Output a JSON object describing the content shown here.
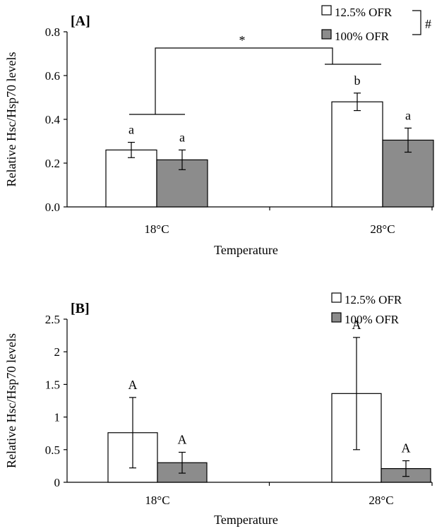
{
  "chart_data": [
    {
      "type": "bar",
      "panel_label": "[A]",
      "title": "",
      "xlabel": "Temperature",
      "ylabel": "Relative Hsc/Hsp70 levels",
      "categories": [
        "18°C",
        "28°C"
      ],
      "ylim": [
        0,
        0.8
      ],
      "yticks": [
        "0.0",
        "0.2",
        "0.4",
        "0.6",
        "0.8"
      ],
      "series": [
        {
          "name": "12.5% OFR",
          "values": [
            0.26,
            0.48
          ],
          "errors": [
            0.035,
            0.04
          ],
          "labels": [
            "a",
            "b"
          ],
          "color": "#ffffff"
        },
        {
          "name": "100% OFR",
          "values": [
            0.215,
            0.305
          ],
          "errors": [
            0.045,
            0.055
          ],
          "labels": [
            "a",
            "a"
          ],
          "color": "#8c8c8c"
        }
      ],
      "legend_position": "top-right",
      "annotations": {
        "temperature_sig": "*",
        "diet_sig": "#"
      }
    },
    {
      "type": "bar",
      "panel_label": "[B]",
      "title": "",
      "xlabel": "Temperature",
      "ylabel": "Relative Hsc/Hsp70 levels",
      "categories": [
        "18°C",
        "28°C"
      ],
      "ylim": [
        0,
        2.5
      ],
      "yticks": [
        "0",
        "0.5",
        "1",
        "1.5",
        "2",
        "2.5"
      ],
      "series": [
        {
          "name": "12.5% OFR",
          "values": [
            0.76,
            1.36
          ],
          "errors": [
            0.54,
            0.86
          ],
          "labels": [
            "A",
            "A"
          ],
          "color": "#ffffff"
        },
        {
          "name": "100% OFR",
          "values": [
            0.3,
            0.21
          ],
          "errors": [
            0.16,
            0.12
          ],
          "labels": [
            "A",
            "A"
          ],
          "color": "#8c8c8c"
        }
      ],
      "legend_position": "top-right"
    }
  ]
}
